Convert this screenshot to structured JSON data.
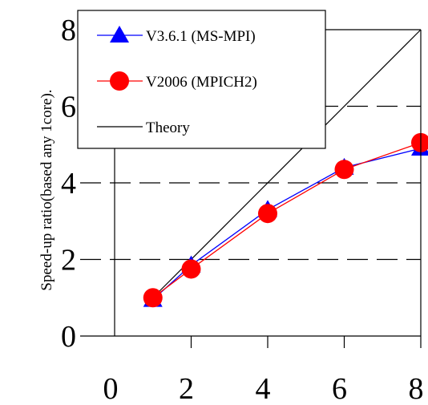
{
  "chart_data": {
    "type": "line",
    "title": "",
    "xlabel": "",
    "ylabel": "Speed-up ratio(based any 1core).",
    "xlim": [
      0,
      8
    ],
    "ylim": [
      0,
      8
    ],
    "xticks": [
      "0",
      "2",
      "4",
      "6",
      "8"
    ],
    "yticks": [
      "0",
      "2",
      "4",
      "6",
      "8"
    ],
    "grid": "horizontal dashed",
    "legend_position": "top-left",
    "series": [
      {
        "name": "V3.6.1 (MS-MPI)",
        "color": "#0000ff",
        "marker": "triangle",
        "x": [
          1,
          2,
          4,
          6,
          8
        ],
        "y": [
          0.95,
          1.85,
          3.3,
          4.4,
          4.9
        ]
      },
      {
        "name": "V2006 (MPICH2)",
        "color": "#ff0000",
        "marker": "circle",
        "x": [
          1,
          2,
          4,
          6,
          8
        ],
        "y": [
          1.0,
          1.75,
          3.2,
          4.35,
          5.05
        ]
      },
      {
        "name": "Theory",
        "color": "#000000",
        "marker": "none",
        "x": [
          1,
          8
        ],
        "y": [
          1,
          8
        ]
      }
    ]
  }
}
